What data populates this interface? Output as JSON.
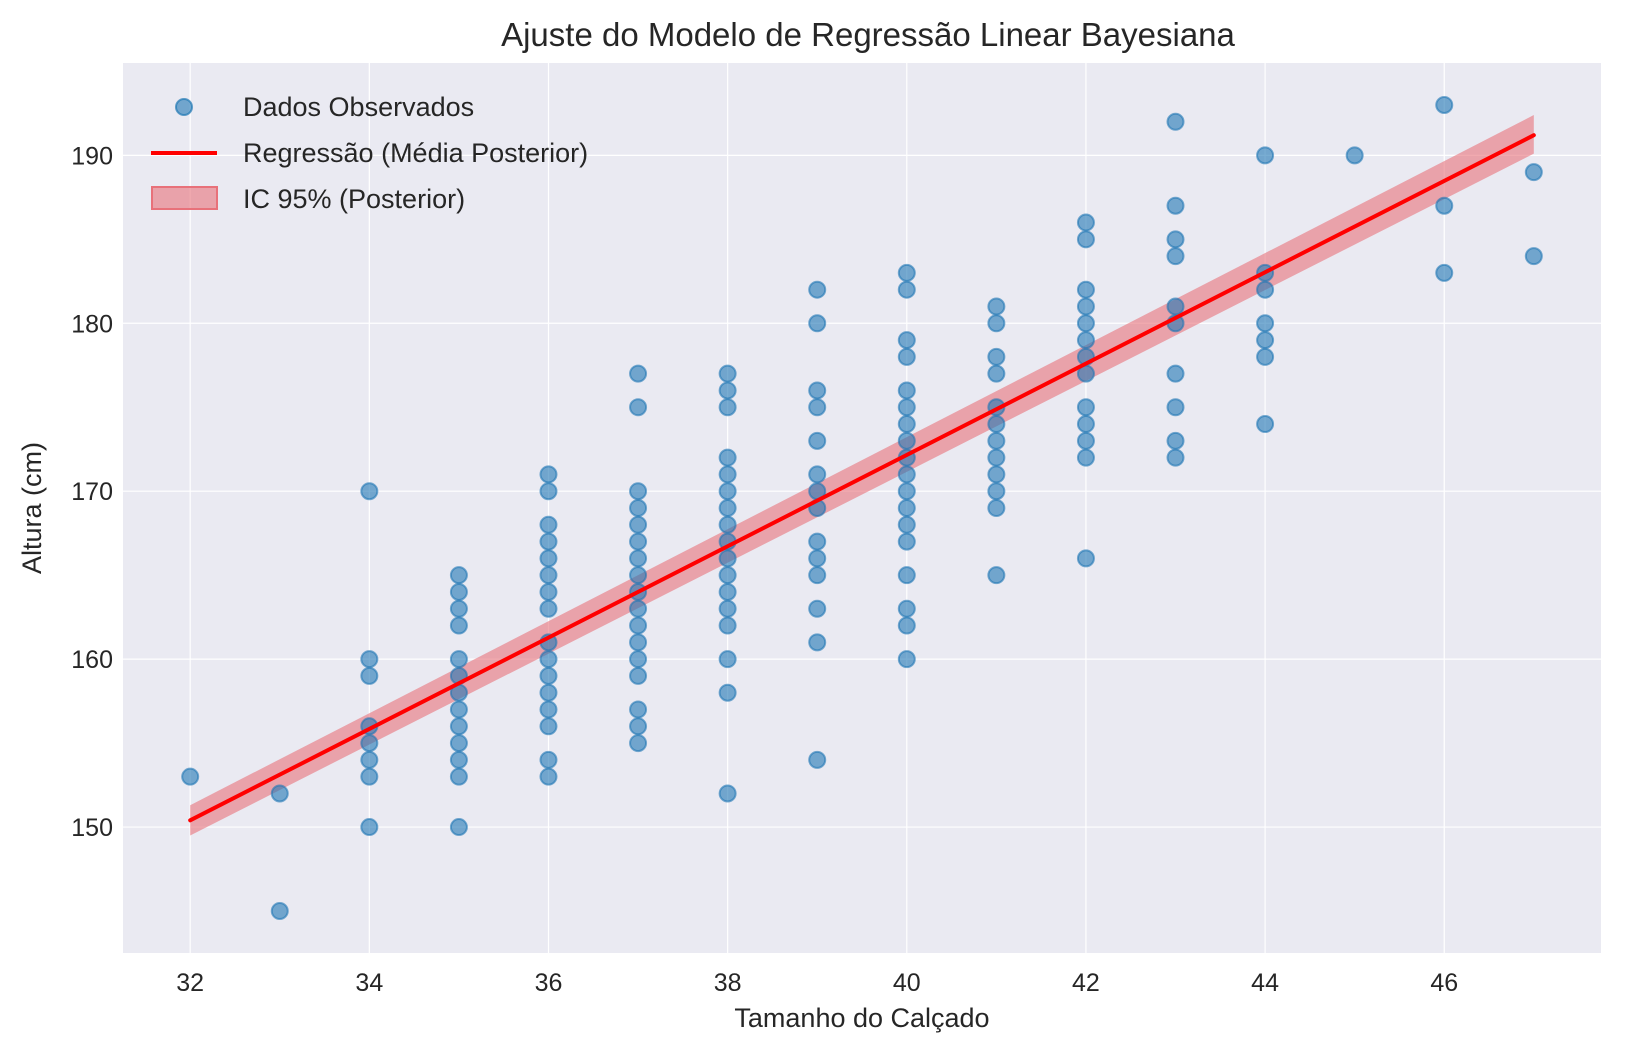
{
  "chart_data": {
    "type": "scatter",
    "title": "Ajuste do Modelo de Regressão Linear Bayesiana",
    "xlabel": "Tamanho do Calçado",
    "ylabel": "Altura (cm)",
    "xlim": [
      31.25,
      47.75
    ],
    "ylim": [
      142.5,
      195.5
    ],
    "xticks": [
      32,
      34,
      36,
      38,
      40,
      42,
      44,
      46
    ],
    "yticks": [
      150,
      160,
      170,
      180,
      190
    ],
    "grid": true,
    "legend_position": "top-left",
    "legend": [
      "Dados Observados",
      "Regressão (Média Posterior)",
      "IC 95% (Posterior)"
    ],
    "colors": {
      "points": "#1f77b4",
      "line": "#ff0000",
      "band": "#e8717a",
      "background": "#eaeaf2",
      "grid": "#ffffff"
    },
    "series": [
      {
        "name": "Dados Observados",
        "type": "scatter",
        "points": [
          [
            32,
            153
          ],
          [
            33,
            152
          ],
          [
            33,
            145
          ],
          [
            34,
            170
          ],
          [
            34,
            160
          ],
          [
            34,
            159
          ],
          [
            34,
            156
          ],
          [
            34,
            155
          ],
          [
            34,
            154
          ],
          [
            34,
            153
          ],
          [
            34,
            150
          ],
          [
            35,
            165
          ],
          [
            35,
            164
          ],
          [
            35,
            163
          ],
          [
            35,
            162
          ],
          [
            35,
            160
          ],
          [
            35,
            159
          ],
          [
            35,
            158
          ],
          [
            35,
            157
          ],
          [
            35,
            156
          ],
          [
            35,
            155
          ],
          [
            35,
            154
          ],
          [
            35,
            153
          ],
          [
            35,
            150
          ],
          [
            36,
            171
          ],
          [
            36,
            170
          ],
          [
            36,
            168
          ],
          [
            36,
            167
          ],
          [
            36,
            166
          ],
          [
            36,
            165
          ],
          [
            36,
            164
          ],
          [
            36,
            163
          ],
          [
            36,
            161
          ],
          [
            36,
            160
          ],
          [
            36,
            159
          ],
          [
            36,
            158
          ],
          [
            36,
            157
          ],
          [
            36,
            156
          ],
          [
            36,
            154
          ],
          [
            36,
            153
          ],
          [
            37,
            177
          ],
          [
            37,
            175
          ],
          [
            37,
            170
          ],
          [
            37,
            169
          ],
          [
            37,
            168
          ],
          [
            37,
            167
          ],
          [
            37,
            166
          ],
          [
            37,
            165
          ],
          [
            37,
            164
          ],
          [
            37,
            163
          ],
          [
            37,
            162
          ],
          [
            37,
            161
          ],
          [
            37,
            160
          ],
          [
            37,
            159
          ],
          [
            37,
            157
          ],
          [
            37,
            156
          ],
          [
            37,
            155
          ],
          [
            38,
            177
          ],
          [
            38,
            176
          ],
          [
            38,
            175
          ],
          [
            38,
            172
          ],
          [
            38,
            171
          ],
          [
            38,
            170
          ],
          [
            38,
            169
          ],
          [
            38,
            168
          ],
          [
            38,
            167
          ],
          [
            38,
            166
          ],
          [
            38,
            165
          ],
          [
            38,
            164
          ],
          [
            38,
            163
          ],
          [
            38,
            162
          ],
          [
            38,
            160
          ],
          [
            38,
            158
          ],
          [
            38,
            152
          ],
          [
            39,
            182
          ],
          [
            39,
            180
          ],
          [
            39,
            176
          ],
          [
            39,
            175
          ],
          [
            39,
            173
          ],
          [
            39,
            171
          ],
          [
            39,
            170
          ],
          [
            39,
            169
          ],
          [
            39,
            167
          ],
          [
            39,
            166
          ],
          [
            39,
            165
          ],
          [
            39,
            163
          ],
          [
            39,
            161
          ],
          [
            39,
            154
          ],
          [
            40,
            183
          ],
          [
            40,
            182
          ],
          [
            40,
            179
          ],
          [
            40,
            178
          ],
          [
            40,
            176
          ],
          [
            40,
            175
          ],
          [
            40,
            174
          ],
          [
            40,
            173
          ],
          [
            40,
            172
          ],
          [
            40,
            171
          ],
          [
            40,
            170
          ],
          [
            40,
            169
          ],
          [
            40,
            168
          ],
          [
            40,
            167
          ],
          [
            40,
            165
          ],
          [
            40,
            163
          ],
          [
            40,
            162
          ],
          [
            40,
            160
          ],
          [
            41,
            181
          ],
          [
            41,
            180
          ],
          [
            41,
            178
          ],
          [
            41,
            177
          ],
          [
            41,
            175
          ],
          [
            41,
            174
          ],
          [
            41,
            173
          ],
          [
            41,
            172
          ],
          [
            41,
            171
          ],
          [
            41,
            170
          ],
          [
            41,
            169
          ],
          [
            41,
            165
          ],
          [
            42,
            186
          ],
          [
            42,
            185
          ],
          [
            42,
            182
          ],
          [
            42,
            181
          ],
          [
            42,
            180
          ],
          [
            42,
            179
          ],
          [
            42,
            178
          ],
          [
            42,
            177
          ],
          [
            42,
            175
          ],
          [
            42,
            174
          ],
          [
            42,
            173
          ],
          [
            42,
            172
          ],
          [
            42,
            166
          ],
          [
            43,
            192
          ],
          [
            43,
            187
          ],
          [
            43,
            185
          ],
          [
            43,
            184
          ],
          [
            43,
            181
          ],
          [
            43,
            180
          ],
          [
            43,
            177
          ],
          [
            43,
            175
          ],
          [
            43,
            173
          ],
          [
            43,
            172
          ],
          [
            44,
            190
          ],
          [
            44,
            183
          ],
          [
            44,
            182
          ],
          [
            44,
            180
          ],
          [
            44,
            179
          ],
          [
            44,
            178
          ],
          [
            44,
            174
          ],
          [
            45,
            190
          ],
          [
            46,
            193
          ],
          [
            46,
            187
          ],
          [
            46,
            183
          ],
          [
            47,
            189
          ],
          [
            47,
            184
          ]
        ]
      },
      {
        "name": "Regressão (Média Posterior)",
        "type": "line",
        "x": [
          32,
          47
        ],
        "y": [
          150.4,
          191.2
        ]
      },
      {
        "name": "IC 95% (Posterior)",
        "type": "area",
        "x": [
          32,
          47
        ],
        "lower": [
          149.5,
          190.1
        ],
        "upper": [
          151.3,
          192.4
        ]
      }
    ]
  }
}
